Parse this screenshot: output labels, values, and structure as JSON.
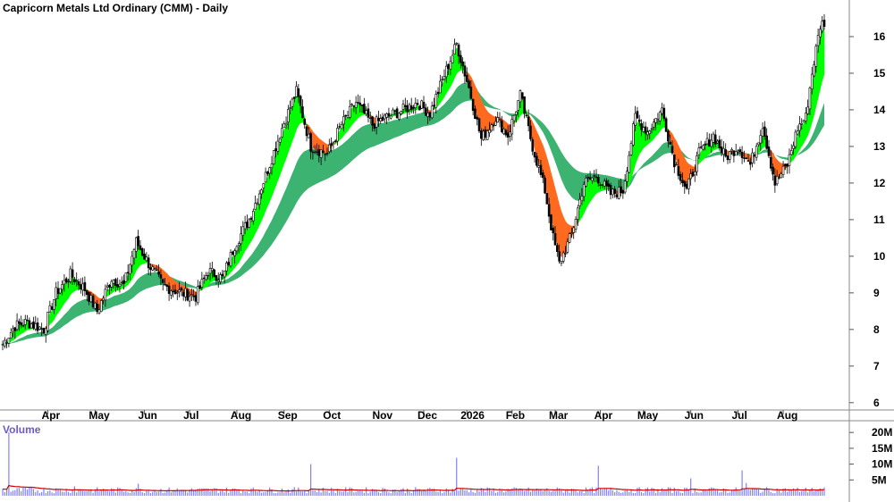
{
  "chart_data": {
    "type": "candlestick",
    "title": "Capricorn Metals Ltd Ordinary (CMM) - Daily",
    "y_axis": {
      "min": 5.8,
      "max": 17.0,
      "ticks": [
        6,
        7,
        8,
        9,
        10,
        11,
        12,
        13,
        14,
        15,
        16
      ],
      "position": "right"
    },
    "x_tick_labels": [
      "Apr",
      "May",
      "Jun",
      "Jul",
      "Aug",
      "Sep",
      "Oct",
      "Nov",
      "Dec",
      "2026",
      "Feb",
      "Mar",
      "Apr",
      "May",
      "Jun",
      "Jul",
      "Aug"
    ],
    "price_anchors": [
      [
        0,
        7.6
      ],
      [
        6,
        8.1
      ],
      [
        12,
        8.2
      ],
      [
        20,
        8.0
      ],
      [
        26,
        9.0
      ],
      [
        33,
        9.5
      ],
      [
        40,
        9.1
      ],
      [
        46,
        8.5
      ],
      [
        53,
        9.4
      ],
      [
        59,
        9.2
      ],
      [
        65,
        10.4
      ],
      [
        71,
        9.8
      ],
      [
        78,
        9.2
      ],
      [
        87,
        9.0
      ],
      [
        94,
        8.9
      ],
      [
        100,
        9.6
      ],
      [
        107,
        9.4
      ],
      [
        113,
        10.3
      ],
      [
        120,
        11.0
      ],
      [
        128,
        12.2
      ],
      [
        136,
        13.5
      ],
      [
        143,
        14.5
      ],
      [
        150,
        13.0
      ],
      [
        158,
        12.8
      ],
      [
        165,
        13.6
      ],
      [
        172,
        14.2
      ],
      [
        180,
        13.6
      ],
      [
        187,
        13.8
      ],
      [
        195,
        14.0
      ],
      [
        202,
        14.2
      ],
      [
        208,
        13.9
      ],
      [
        214,
        14.8
      ],
      [
        221,
        15.8
      ],
      [
        227,
        14.6
      ],
      [
        233,
        13.2
      ],
      [
        240,
        13.8
      ],
      [
        246,
        13.3
      ],
      [
        252,
        14.4
      ],
      [
        258,
        13.0
      ],
      [
        264,
        11.8
      ],
      [
        268,
        10.5
      ],
      [
        271,
        9.8
      ],
      [
        277,
        10.6
      ],
      [
        283,
        12.0
      ],
      [
        289,
        12.2
      ],
      [
        296,
        11.7
      ],
      [
        302,
        11.8
      ],
      [
        308,
        13.8
      ],
      [
        314,
        13.4
      ],
      [
        321,
        14.0
      ],
      [
        327,
        12.6
      ],
      [
        333,
        11.8
      ],
      [
        339,
        12.8
      ],
      [
        346,
        13.3
      ],
      [
        352,
        12.7
      ],
      [
        358,
        13.0
      ],
      [
        364,
        12.5
      ],
      [
        370,
        13.6
      ],
      [
        376,
        12.0
      ],
      [
        382,
        12.5
      ],
      [
        387,
        13.5
      ],
      [
        391,
        13.8
      ],
      [
        394,
        15.0
      ],
      [
        398,
        16.3
      ],
      [
        400,
        16.4
      ]
    ],
    "series": [
      {
        "name": "",
        "color": "#00ff00",
        "alt_color": "#ff6a1f"
      },
      {
        "name": "",
        "color": "#3cb371"
      }
    ],
    "volume": {
      "label": "Volume",
      "ticks": [
        "20M",
        "15M",
        "10M",
        "5M"
      ],
      "tick_values": [
        20,
        15,
        10,
        5
      ],
      "max": 24,
      "baseline": 1.6,
      "spikes": [
        [
          3,
          20
        ],
        [
          35,
          3
        ],
        [
          66,
          3.8
        ],
        [
          150,
          10
        ],
        [
          221,
          12
        ],
        [
          290,
          9.5
        ],
        [
          335,
          5.5
        ],
        [
          360,
          8
        ],
        [
          362,
          4
        ],
        [
          394,
          2.5
        ]
      ]
    }
  }
}
